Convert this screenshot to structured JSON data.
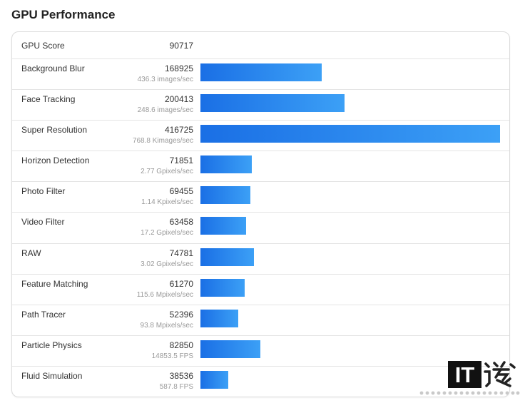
{
  "summary": {
    "label": "GPU Score",
    "value": 90717
  },
  "chart_data": {
    "type": "bar",
    "orientation": "horizontal",
    "title": "GPU Performance",
    "categories": [
      "Background Blur",
      "Face Tracking",
      "Super Resolution",
      "Horizon Detection",
      "Photo Filter",
      "Video Filter",
      "RAW",
      "Feature Matching",
      "Path Tracer",
      "Particle Physics",
      "Fluid Simulation"
    ],
    "values": [
      168925,
      200413,
      416725,
      71851,
      69455,
      63458,
      74781,
      61270,
      52396,
      82850,
      38536
    ],
    "rates": [
      "436.3 images/sec",
      "248.6 images/sec",
      "768.8 Kimages/sec",
      "2.77 Gpixels/sec",
      "1.14 Kpixels/sec",
      "17.2 Gpixels/sec",
      "3.02 Gpixels/sec",
      "115.6 Mpixels/sec",
      "93.8 Mpixels/sec",
      "14853.5 FPS",
      "587.8 FPS"
    ],
    "xlim": [
      0,
      416725
    ],
    "grid": false,
    "colors": {
      "bar_start": "#1a6fe5",
      "bar_end": "#3ca0f6"
    }
  },
  "watermark": {
    "logo_text": "IT"
  }
}
